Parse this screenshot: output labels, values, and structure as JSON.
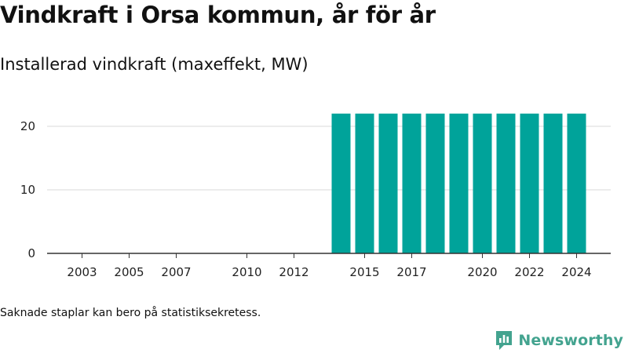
{
  "title": "Vindkraft i Orsa kommun, år för år",
  "subtitle": "Installerad vindkraft (maxeffekt, MW)",
  "note": "Saknade staplar kan bero på statistiksekretess.",
  "brand": {
    "name": "Newsworthy",
    "icon": "newsworthy-logo-icon",
    "color": "#43a38f"
  },
  "chart_data": {
    "type": "bar",
    "categories": [
      "2003",
      "2004",
      "2005",
      "2006",
      "2007",
      "2008",
      "2009",
      "2010",
      "2011",
      "2012",
      "2013",
      "2014",
      "2015",
      "2016",
      "2017",
      "2018",
      "2019",
      "2020",
      "2021",
      "2022",
      "2023",
      "2024"
    ],
    "values": [
      null,
      null,
      null,
      null,
      null,
      null,
      null,
      null,
      null,
      null,
      null,
      22,
      22,
      22,
      22,
      22,
      22,
      22,
      22,
      22,
      22,
      22
    ],
    "x_tick_labels": [
      "2003",
      "2005",
      "2007",
      "2010",
      "2012",
      "2015",
      "2017",
      "2020",
      "2022",
      "2024"
    ],
    "y_ticks": [
      0,
      10,
      20
    ],
    "ylim": [
      0,
      22
    ],
    "bar_color": "#00a39a",
    "grid": true,
    "legend": "none",
    "xlabel": "",
    "ylabel": ""
  }
}
